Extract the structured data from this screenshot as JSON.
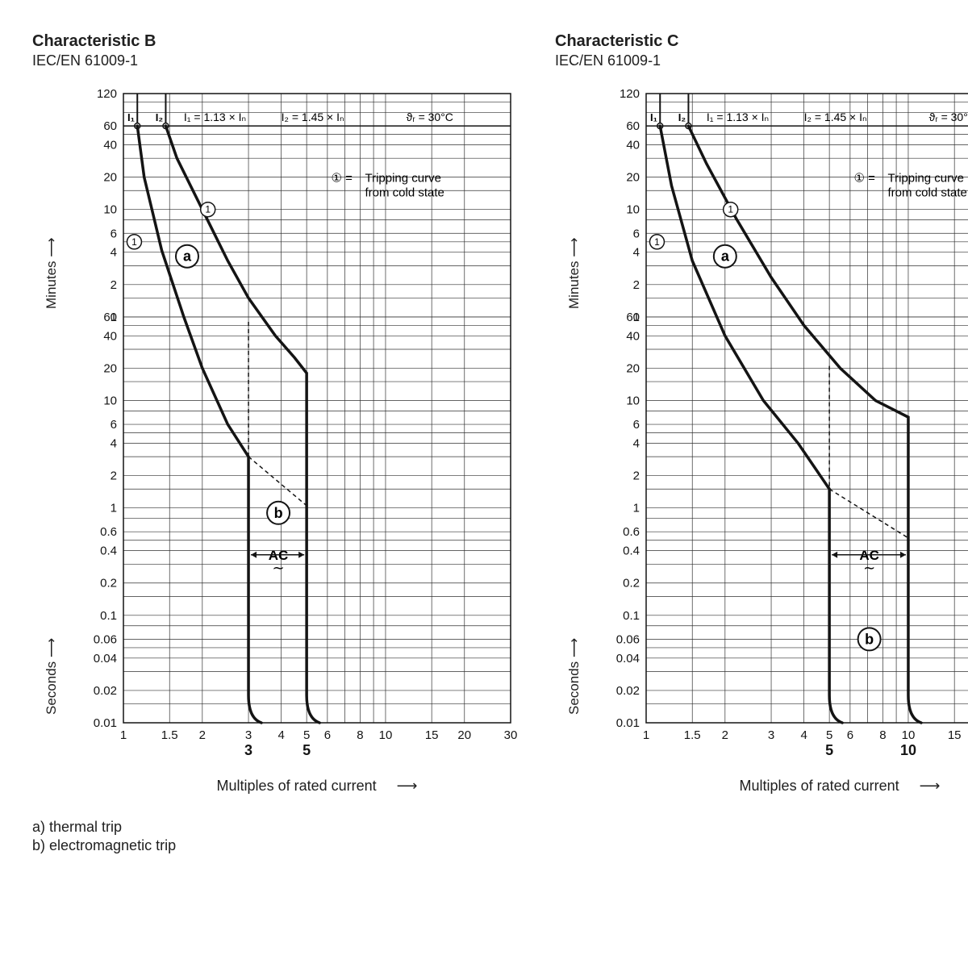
{
  "common": {
    "standard": "IEC/EN 61009-1",
    "note_I1": "I₁ = 1.13 × Iₙ",
    "note_I2": "I₂ = 1.45 × Iₙ",
    "note_temp": "ϑᵣ = 30°C",
    "legend_key": "①",
    "legend_text1": "Tripping curve",
    "legend_text2": "from cold state",
    "x_label": "Multiples of rated current",
    "y_label_top": "Minutes",
    "y_label_bot": "Seconds",
    "note_a": "a)  thermal trip",
    "note_b": "b)  electromagnetic trip",
    "marker_a": "a",
    "marker_b": "b",
    "marker_ac": "AC",
    "xlim": [
      1,
      30
    ],
    "ylim_seconds": [
      0.01,
      60
    ],
    "ylim_minutes": [
      1,
      120
    ],
    "x_ticks": [
      1,
      1.5,
      2,
      3,
      4,
      5,
      6,
      8,
      10,
      15,
      20,
      30
    ],
    "sec_ticks": [
      0.01,
      0.02,
      0.04,
      0.06,
      0.1,
      0.2,
      0.4,
      0.6,
      1,
      2,
      4,
      6,
      10,
      20,
      40,
      60
    ],
    "min_ticks": [
      1,
      2,
      4,
      6,
      10,
      20,
      40,
      60,
      120
    ],
    "curve_color": "#141414",
    "curve_width": 3.5,
    "grid_color": "#303030",
    "grid_width": 0.7,
    "frame_width": 1.5,
    "bg": "#ffffff",
    "tick_fontsize": 15
  },
  "charts": [
    {
      "title": "Characteristic B",
      "knee_low": 3,
      "knee_high": 5,
      "knee_labels": [
        "3",
        "5"
      ],
      "upper_curve": [
        {
          "x": 1.45,
          "sec": 3600
        },
        {
          "x": 1.6,
          "sec": 1800
        },
        {
          "x": 2.0,
          "sec": 600
        },
        {
          "x": 2.5,
          "sec": 200
        },
        {
          "x": 3.0,
          "sec": 90
        },
        {
          "x": 3.8,
          "sec": 40
        },
        {
          "x": 4.5,
          "sec": 25
        },
        {
          "x": 5.0,
          "sec": 18
        }
      ],
      "lower_curve": [
        {
          "x": 1.13,
          "sec": 3600
        },
        {
          "x": 1.2,
          "sec": 1200
        },
        {
          "x": 1.4,
          "sec": 250
        },
        {
          "x": 1.7,
          "sec": 60
        },
        {
          "x": 2.0,
          "sec": 20
        },
        {
          "x": 2.5,
          "sec": 6
        },
        {
          "x": 3.0,
          "sec": 3
        }
      ],
      "marker_a_pos": {
        "x": 1.75,
        "sec": 220
      },
      "marker_b_pos": {
        "x": 3.9,
        "sec": 0.9
      },
      "ac_pos": {
        "x": 3.9,
        "sec": 0.33
      },
      "circle1_low": {
        "x": 1.1,
        "sec": 300
      },
      "circle1_high": {
        "x": 2.1,
        "sec": 600
      }
    },
    {
      "title": "Characteristic C",
      "knee_low": 5,
      "knee_high": 10,
      "knee_labels": [
        "5",
        "10"
      ],
      "upper_curve": [
        {
          "x": 1.45,
          "sec": 3600
        },
        {
          "x": 1.7,
          "sec": 1600
        },
        {
          "x": 2.2,
          "sec": 500
        },
        {
          "x": 3.0,
          "sec": 140
        },
        {
          "x": 4.0,
          "sec": 50
        },
        {
          "x": 5.5,
          "sec": 20
        },
        {
          "x": 7.5,
          "sec": 10
        },
        {
          "x": 10,
          "sec": 7
        }
      ],
      "lower_curve": [
        {
          "x": 1.13,
          "sec": 3600
        },
        {
          "x": 1.25,
          "sec": 1000
        },
        {
          "x": 1.5,
          "sec": 200
        },
        {
          "x": 2.0,
          "sec": 40
        },
        {
          "x": 2.8,
          "sec": 10
        },
        {
          "x": 3.8,
          "sec": 4
        },
        {
          "x": 5.0,
          "sec": 1.5
        }
      ],
      "marker_a_pos": {
        "x": 2.0,
        "sec": 220
      },
      "marker_b_pos": {
        "x": 7.1,
        "sec": 0.06
      },
      "ac_pos": {
        "x": 7.1,
        "sec": 0.33
      },
      "circle1_low": {
        "x": 1.1,
        "sec": 300
      },
      "circle1_high": {
        "x": 2.1,
        "sec": 600
      }
    }
  ]
}
